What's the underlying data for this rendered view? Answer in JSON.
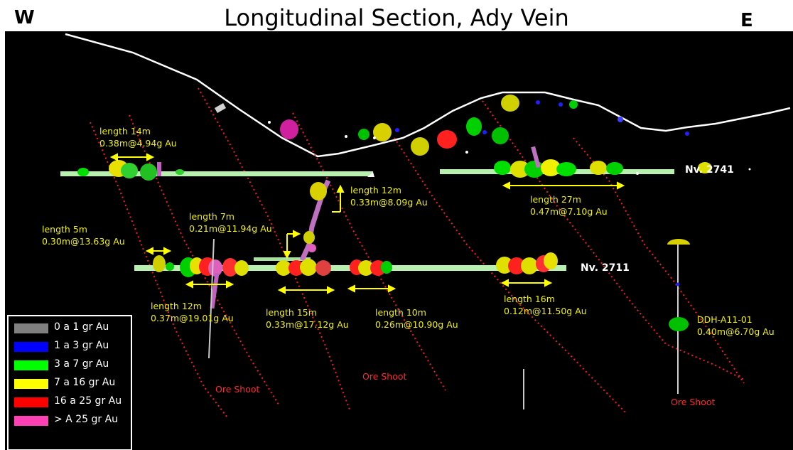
{
  "header": {
    "west": "W",
    "east": "E",
    "title": "Longitudinal Section, Ady Vein"
  },
  "levels": [
    "Nv. 2741",
    "Nv. 2711"
  ],
  "intercepts": [
    {
      "length": "length 14m",
      "grade": "0.38m@4.94g Au"
    },
    {
      "length": "length 12m",
      "grade": "0.33m@8.09g Au"
    },
    {
      "length": "length 27m",
      "grade": "0.47m@7.10g Au"
    },
    {
      "length": "length 7m",
      "grade": "0.21m@11.94g Au"
    },
    {
      "length": "length 5m",
      "grade": "0.30m@13.63g Au"
    },
    {
      "length": "length 12m",
      "grade": "0.37m@19.01g Au"
    },
    {
      "length": "length 15m",
      "grade": "0.33m@17.12g Au"
    },
    {
      "length": "length 10m",
      "grade": "0.26m@10.90g Au"
    },
    {
      "length": "length 16m",
      "grade": "0.12m@11.50g Au"
    }
  ],
  "drillhole": {
    "name": "DDH-A11-01",
    "grade": "0.40m@6.70g Au"
  },
  "ore_shoot_label": "Ore Shoot",
  "legend": [
    {
      "label": "0 a 1 gr Au",
      "color": "#808080"
    },
    {
      "label": "1 a 3 gr Au",
      "color": "#0000ff"
    },
    {
      "label": "3 a 7 gr Au",
      "color": "#00ff00"
    },
    {
      "label": "7 a 16 gr Au",
      "color": "#ffff00"
    },
    {
      "label": "16 a 25 gr Au",
      "color": "#ff0000"
    },
    {
      "label": "> A 25 gr Au",
      "color": "#ff3fb4"
    }
  ]
}
